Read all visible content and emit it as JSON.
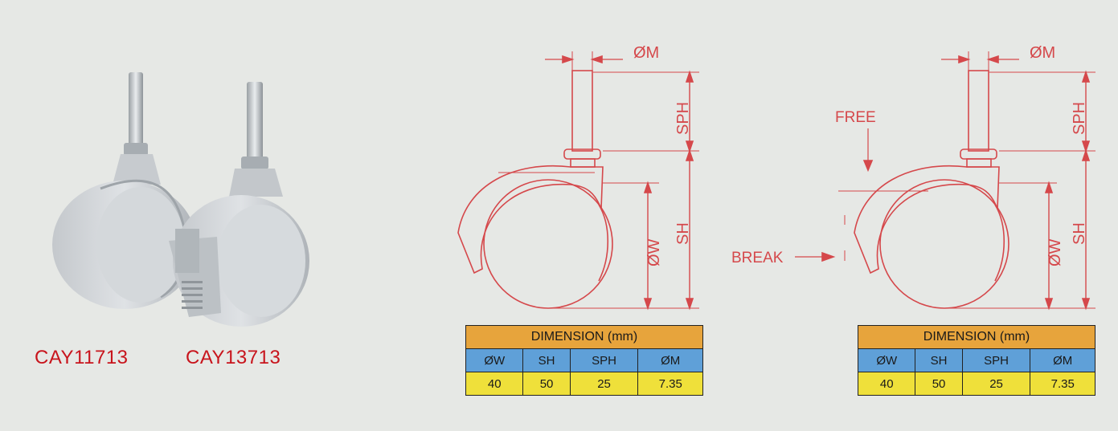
{
  "products": [
    {
      "code": "CAY11713"
    },
    {
      "code": "CAY13713"
    }
  ],
  "drawing_left": {
    "labels": {
      "om": "ØM",
      "sph": "SPH",
      "sh": "SH",
      "ow": "ØW"
    }
  },
  "drawing_right": {
    "labels": {
      "om": "ØM",
      "sph": "SPH",
      "sh": "SH",
      "ow": "ØW",
      "free": "FREE",
      "break": "BREAK"
    }
  },
  "tables": [
    {
      "title": "DIMENSION (mm)",
      "columns": [
        "ØW",
        "SH",
        "SPH",
        "ØM"
      ],
      "values": [
        "40",
        "50",
        "25",
        "7.35"
      ]
    },
    {
      "title": "DIMENSION (mm)",
      "columns": [
        "ØW",
        "SH",
        "SPH",
        "ØM"
      ],
      "values": [
        "40",
        "50",
        "25",
        "7.35"
      ]
    }
  ],
  "colors": {
    "drawing_line": "#d5484b",
    "label_red": "#c8141c",
    "table_header": "#e7a43c",
    "table_columns": "#5fa0d8",
    "table_values": "#efe03a",
    "background": "#e6e8e5"
  }
}
